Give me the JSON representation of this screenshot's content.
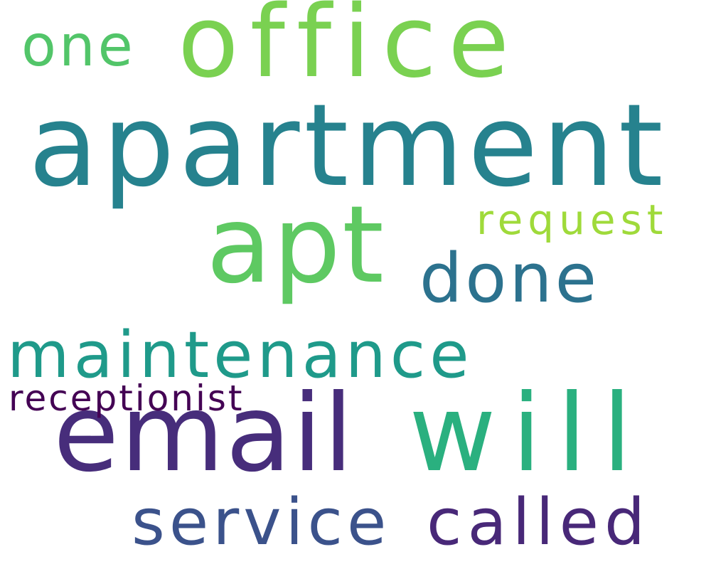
{
  "words": [
    {
      "key": "apartment",
      "text": "apartment",
      "color": "#26828E"
    },
    {
      "key": "office",
      "text": "office",
      "color": "#7AD151"
    },
    {
      "key": "email",
      "text": "email",
      "color": "#472D7B"
    },
    {
      "key": "will",
      "text": "will",
      "color": "#2AB07F"
    },
    {
      "key": "apt",
      "text": "apt",
      "color": "#5EC962"
    },
    {
      "key": "maintenance",
      "text": "maintenance",
      "color": "#1F9A8A"
    },
    {
      "key": "service",
      "text": "service",
      "color": "#3B528B"
    },
    {
      "key": "called",
      "text": "called",
      "color": "#482878"
    },
    {
      "key": "done",
      "text": "done",
      "color": "#2C728E"
    },
    {
      "key": "one",
      "text": "one",
      "color": "#52C569"
    },
    {
      "key": "request",
      "text": "request",
      "color": "#9FDA3A"
    },
    {
      "key": "receptionist",
      "text": "receptionist",
      "color": "#440154"
    }
  ]
}
